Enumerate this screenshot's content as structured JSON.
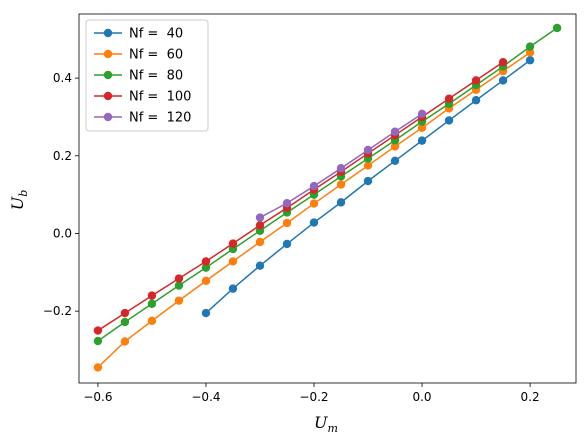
{
  "chart_data": {
    "type": "line",
    "title": "",
    "xlabel": "U",
    "xlabel_sub": "m",
    "ylabel": "U",
    "ylabel_sub": "b",
    "xlim": [
      -0.635,
      0.285
    ],
    "ylim": [
      -0.385,
      0.565
    ],
    "xticks": [
      -0.6,
      -0.4,
      -0.2,
      0.0,
      0.2
    ],
    "xtick_labels": [
      "−0.6",
      "−0.4",
      "−0.2",
      "0.0",
      "0.2"
    ],
    "yticks": [
      -0.2,
      0.0,
      0.2,
      0.4
    ],
    "ytick_labels": [
      "−0.2",
      "0.0",
      "0.2",
      "0.4"
    ],
    "grid": false,
    "legend_position": "top-left",
    "series": [
      {
        "name": "Nf =  40",
        "color": "#1f77b4",
        "x": [
          -0.4,
          -0.35,
          -0.3,
          -0.25,
          -0.2,
          -0.15,
          -0.1,
          -0.05,
          0.0,
          0.05,
          0.1,
          0.15,
          0.2
        ],
        "y": [
          -0.205,
          -0.142,
          -0.083,
          -0.027,
          0.028,
          0.08,
          0.135,
          0.187,
          0.239,
          0.291,
          0.343,
          0.394,
          0.446
        ]
      },
      {
        "name": "Nf =  60",
        "color": "#ff7f0e",
        "x": [
          -0.6,
          -0.55,
          -0.5,
          -0.45,
          -0.4,
          -0.35,
          -0.3,
          -0.25,
          -0.2,
          -0.15,
          -0.1,
          -0.05,
          0.0,
          0.05,
          0.1,
          0.15,
          0.2
        ],
        "y": [
          -0.345,
          -0.278,
          -0.225,
          -0.173,
          -0.122,
          -0.072,
          -0.022,
          0.027,
          0.077,
          0.126,
          0.175,
          0.224,
          0.272,
          0.322,
          0.37,
          0.418,
          0.466
        ]
      },
      {
        "name": "Nf =  80",
        "color": "#2ca02c",
        "x": [
          -0.6,
          -0.55,
          -0.5,
          -0.45,
          -0.4,
          -0.35,
          -0.3,
          -0.25,
          -0.2,
          -0.15,
          -0.1,
          -0.05,
          0.0,
          0.05,
          0.1,
          0.15,
          0.2,
          0.25
        ],
        "y": [
          -0.277,
          -0.228,
          -0.181,
          -0.134,
          -0.088,
          -0.04,
          0.007,
          0.054,
          0.1,
          0.147,
          0.193,
          0.24,
          0.288,
          0.334,
          0.382,
          0.43,
          0.481,
          0.529
        ]
      },
      {
        "name": "Nf =  100",
        "color": "#d62728",
        "x": [
          -0.6,
          -0.55,
          -0.5,
          -0.45,
          -0.4,
          -0.35,
          -0.3,
          -0.25,
          -0.2,
          -0.15,
          -0.1,
          -0.05,
          0.0,
          0.05,
          0.1,
          0.15
        ],
        "y": [
          -0.25,
          -0.205,
          -0.16,
          -0.116,
          -0.072,
          -0.026,
          0.021,
          0.066,
          0.113,
          0.159,
          0.206,
          0.253,
          0.3,
          0.347,
          0.394,
          0.441
        ]
      },
      {
        "name": "Nf =  120",
        "color": "#9467bd",
        "x": [
          -0.3,
          -0.25,
          -0.2,
          -0.15,
          -0.1,
          -0.05,
          0.0
        ],
        "y": [
          0.041,
          0.078,
          0.122,
          0.168,
          0.215,
          0.262,
          0.308
        ]
      }
    ]
  }
}
